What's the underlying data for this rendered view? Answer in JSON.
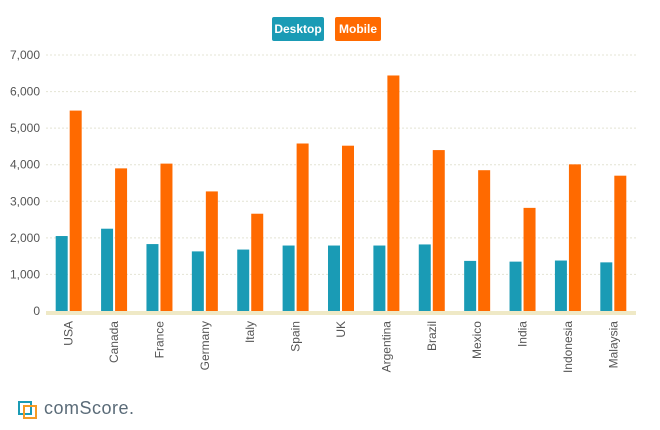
{
  "chart_data": {
    "type": "bar",
    "title": "",
    "xlabel": "",
    "ylabel": "",
    "ylim": [
      0,
      7000
    ],
    "yticks": [
      "0",
      "1,000",
      "2,000",
      "3,000",
      "4,000",
      "5,000",
      "6,000",
      "7,000"
    ],
    "grid": true,
    "legend_position": "top-center",
    "categories": [
      "USA",
      "Canada",
      "France",
      "Germany",
      "Italy",
      "Spain",
      "UK",
      "Argentina",
      "Brazil",
      "Mexico",
      "India",
      "Indonesia",
      "Malaysia"
    ],
    "series": [
      {
        "name": "Desktop",
        "color": "#1a9bb5",
        "values": [
          2050,
          2250,
          1830,
          1630,
          1680,
          1790,
          1790,
          1790,
          1820,
          1370,
          1350,
          1380,
          1330
        ]
      },
      {
        "name": "Mobile",
        "color": "#ff6a00",
        "values": [
          5480,
          3900,
          4030,
          3270,
          2660,
          4580,
          4520,
          6440,
          4400,
          3850,
          2820,
          4010,
          3700
        ]
      }
    ]
  },
  "brand": {
    "logo_text": "comScore",
    "logo_suffix": "."
  }
}
